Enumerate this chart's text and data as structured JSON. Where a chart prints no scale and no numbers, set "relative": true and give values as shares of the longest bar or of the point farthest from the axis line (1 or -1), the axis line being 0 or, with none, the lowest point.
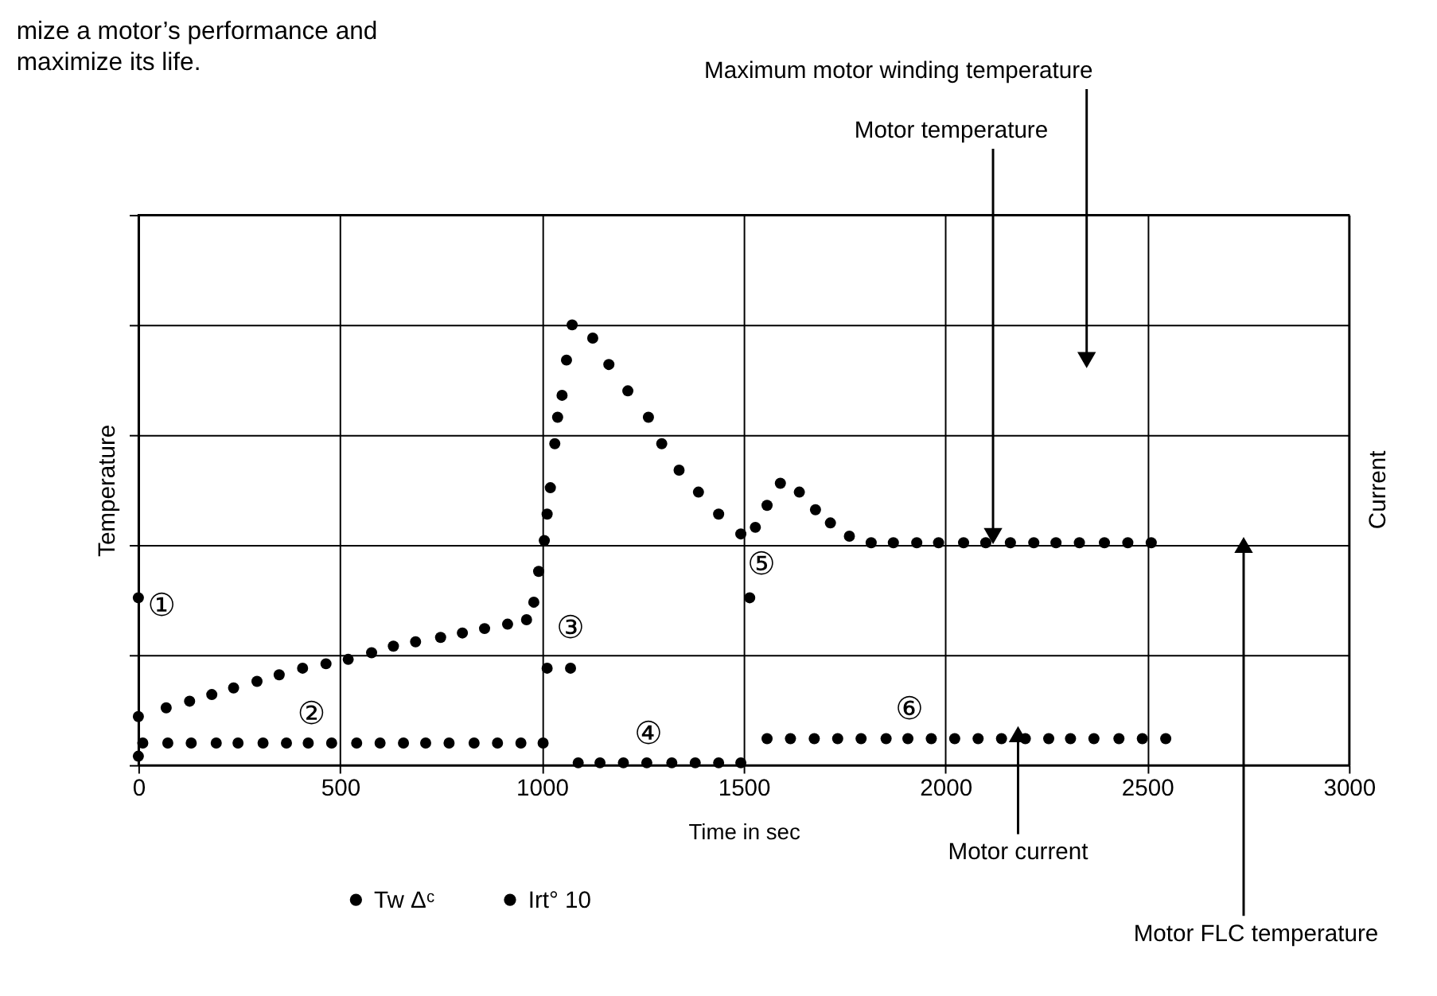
{
  "chart_data": {
    "type": "scatter",
    "title": "mize a motor’s performance and maximize its life.",
    "xlabel": "Time in sec",
    "ylabel": "Temperature",
    "y2label": "Current",
    "relative": true,
    "xlim": [
      0,
      3000
    ],
    "xticks": [
      0,
      500,
      1000,
      1500,
      2000,
      2500,
      3000
    ],
    "grid": true,
    "legend": "bottom",
    "marker": "circle",
    "series": [
      {
        "name": "Tw Δᶜ",
        "color": "#000000",
        "x": [
          0,
          0,
          69,
          127,
          182,
          236,
          294,
          349,
          407,
          465,
          520,
          578,
          632,
          687,
          749,
          803,
          858,
          915,
          962,
          980,
          992,
          1006,
          1013,
          1021,
          1032,
          1039,
          1050,
          1061,
          1075,
          1126,
          1166,
          1213,
          1264,
          1297,
          1340,
          1388,
          1438,
          1493,
          1515,
          1529,
          1558,
          1591,
          1638,
          1678,
          1715,
          1762,
          1816,
          1871,
          1929,
          1983,
          2045,
          2100,
          2161,
          2219,
          2274,
          2332,
          2394,
          2452,
          2510
        ],
        "values": [
          0.38,
          0.11,
          0.13,
          0.145,
          0.16,
          0.175,
          0.19,
          0.205,
          0.22,
          0.23,
          0.24,
          0.255,
          0.27,
          0.28,
          0.29,
          0.3,
          0.31,
          0.32,
          0.33,
          0.37,
          0.44,
          0.51,
          0.57,
          0.63,
          0.73,
          0.79,
          0.84,
          0.92,
          1,
          0.97,
          0.91,
          0.85,
          0.79,
          0.73,
          0.67,
          0.62,
          0.57,
          0.525,
          0.38,
          0.54,
          0.59,
          0.64,
          0.62,
          0.58,
          0.55,
          0.52,
          0.505,
          0.505,
          0.505,
          0.505,
          0.505,
          0.505,
          0.505,
          0.505,
          0.505,
          0.505,
          0.505,
          0.505,
          0.505
        ]
      },
      {
        "name": "Irt° 10",
        "color": "#000000",
        "x": [
          0,
          11,
          73,
          131,
          193,
          247,
          309,
          367,
          421,
          479,
          541,
          599,
          657,
          712,
          770,
          832,
          890,
          948,
          1003,
          1013,
          1071,
          1090,
          1144,
          1202,
          1260,
          1322,
          1380,
          1438,
          1493,
          1558,
          1616,
          1675,
          1733,
          1791,
          1853,
          1907,
          1965,
          2023,
          2081,
          2139,
          2198,
          2256,
          2310,
          2368,
          2430,
          2488,
          2546
        ],
        "values": [
          0.02,
          0.05,
          0.05,
          0.05,
          0.05,
          0.05,
          0.05,
          0.05,
          0.05,
          0.05,
          0.05,
          0.05,
          0.05,
          0.05,
          0.05,
          0.05,
          0.05,
          0.05,
          0.05,
          0.22,
          0.22,
          0.005,
          0.005,
          0.005,
          0.005,
          0.005,
          0.005,
          0.005,
          0.005,
          0.06,
          0.06,
          0.06,
          0.06,
          0.06,
          0.06,
          0.06,
          0.06,
          0.06,
          0.06,
          0.06,
          0.06,
          0.06,
          0.06,
          0.06,
          0.06,
          0.06,
          0.06
        ]
      }
    ],
    "annotations": [
      {
        "text": "Motor temperature",
        "x": 2118,
        "y": 0.52
      },
      {
        "text": "Maximum motor winding temperature",
        "x": 2350,
        "y": 0.92
      },
      {
        "text": "Motor current",
        "x": 2180,
        "y": 0.07
      },
      {
        "text": "Motor FLC temperature",
        "x": 2739,
        "y": 0.5
      },
      "①",
      "②",
      "③",
      "④",
      "⑤",
      "⑥"
    ]
  }
}
